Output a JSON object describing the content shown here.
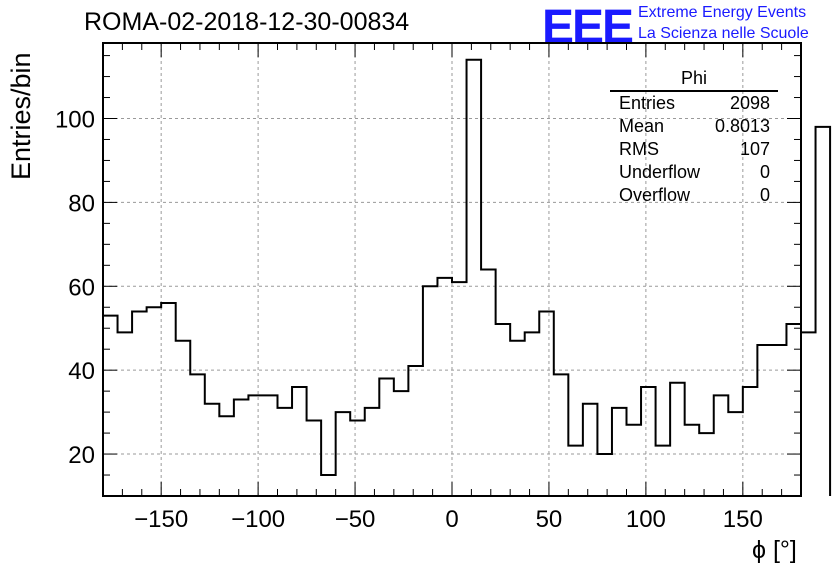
{
  "title": "ROMA-02-2018-12-30-00834",
  "logo": {
    "text": "EEE",
    "line1": "Extreme Energy Events",
    "line2": "La Scienza nelle Scuole",
    "color": "#1a1aff"
  },
  "stats_box": {
    "title": "Phi",
    "rows": [
      {
        "label": "Entries",
        "value": "2098"
      },
      {
        "label": "Mean",
        "value": "0.8013"
      },
      {
        "label": "RMS",
        "value": "107"
      },
      {
        "label": "Underflow",
        "value": "0"
      },
      {
        "label": "Overflow",
        "value": "0"
      }
    ]
  },
  "chart_data": {
    "type": "histogram",
    "title": "ROMA-02-2018-12-30-00834",
    "xlabel": "ϕ [°]",
    "ylabel": "Entries/bin",
    "xlim": [
      -180,
      180
    ],
    "ylim": [
      10,
      118
    ],
    "grid": true,
    "bin_width": 7.5,
    "x_ticks": [
      -150,
      -100,
      -50,
      0,
      50,
      100,
      150
    ],
    "x_tick_labels": [
      "−150",
      "−100",
      "−50",
      "0",
      "50",
      "100",
      "150"
    ],
    "y_ticks": [
      20,
      40,
      60,
      80,
      100
    ],
    "y_tick_labels": [
      "20",
      "40",
      "60",
      "80",
      "100"
    ],
    "values": [
      53,
      49,
      54,
      55,
      56,
      47,
      39,
      32,
      29,
      33,
      34,
      34,
      31,
      36,
      28,
      15,
      30,
      28,
      31,
      38,
      35,
      41,
      60,
      62,
      61,
      114,
      64,
      51,
      47,
      49,
      54,
      39,
      22,
      32,
      20,
      31,
      27,
      36,
      22,
      37,
      27,
      25,
      34,
      30,
      36,
      46,
      46,
      51,
      49,
      98
    ]
  }
}
